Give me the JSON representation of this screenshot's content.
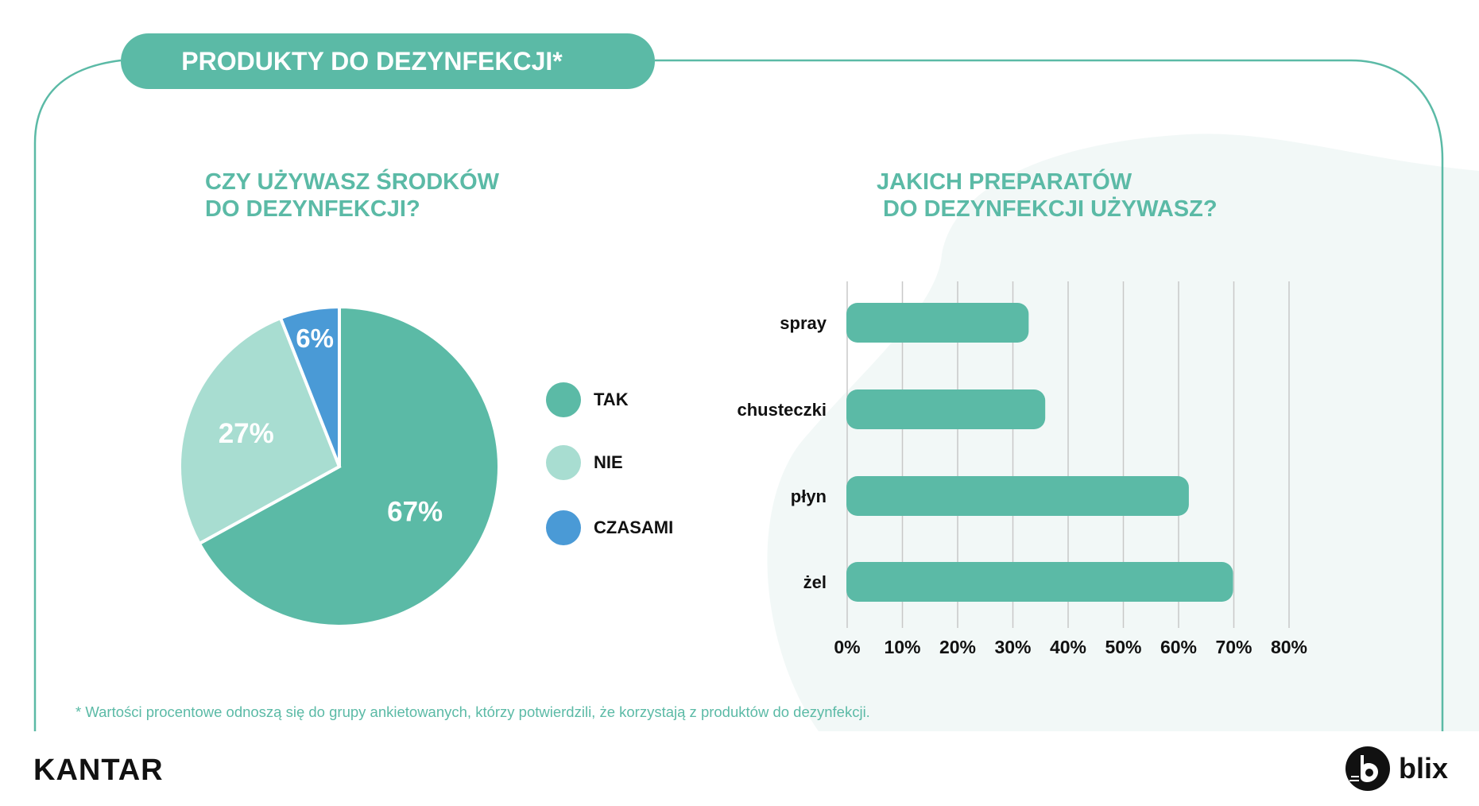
{
  "header": {
    "title": "PRODUKTY DO DEZYNFEKCJI*"
  },
  "colors": {
    "accent": "#5bbaa6",
    "light": "#a8ddd1",
    "blue": "#4a9ad6",
    "blob": "#f2f8f7"
  },
  "chart_data": [
    {
      "type": "pie",
      "title_lines": [
        "CZY UŻYWASZ ŚRODKÓW",
        "DO DEZYNFEKCJI?"
      ],
      "slices": [
        {
          "label": "TAK",
          "value": 67,
          "display": "67%",
          "color": "#5bbaa6"
        },
        {
          "label": "NIE",
          "value": 27,
          "display": "27%",
          "color": "#a8ddd1"
        },
        {
          "label": "CZASAMI",
          "value": 6,
          "display": "6%",
          "color": "#4a9ad6"
        }
      ],
      "legend_position": "right"
    },
    {
      "type": "bar",
      "orientation": "horizontal",
      "title_lines": [
        "JAKICH PREPARATÓW",
        " DO DEZYNFEKCJI UŻYWASZ?"
      ],
      "categories": [
        "spray",
        "chusteczki",
        "płyn",
        "żel"
      ],
      "values": [
        33,
        36,
        62,
        70
      ],
      "xlim": [
        0,
        80
      ],
      "xticks": [
        "0%",
        "10%",
        "20%",
        "30%",
        "40%",
        "50%",
        "60%",
        "70%",
        "80%"
      ],
      "grid": true,
      "color": "#5bbaa6"
    }
  ],
  "footnote": "* Wartości procentowe odnoszą się do grupy ankietowanych, którzy potwierdzili, że korzystają z produktów do dezynfekcji.",
  "footer": {
    "left_logo": "KANTAR",
    "right_logo": "blix"
  }
}
